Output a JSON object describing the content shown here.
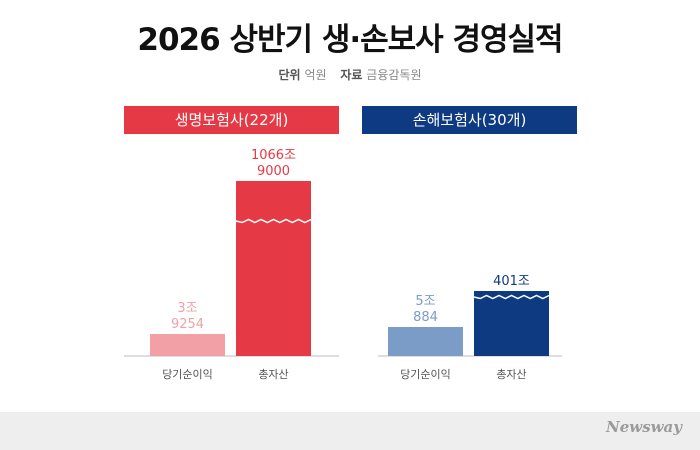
{
  "title": "2026 상반기 생·손보사 경영실적",
  "unit_line": {
    "unit_key": "단위",
    "unit_value": "억원",
    "source_key": "자료",
    "source_value": "금융감독원"
  },
  "brand": "Newsway",
  "colors": {
    "life_accent": "#e63946",
    "life_light": "#f2a0a6",
    "nonlife_accent": "#0d3a80",
    "nonlife_light": "#7a9cc7"
  },
  "chart_data": [
    {
      "type": "bar",
      "title": "생명보험사(22개)",
      "categories": [
        "당기순이익",
        "총자산"
      ],
      "values": [
        39254,
        10669000
      ],
      "value_labels": [
        [
          "3조",
          "9254"
        ],
        [
          "1066조",
          "9000"
        ]
      ],
      "axis_break": true
    },
    {
      "type": "bar",
      "title": "손해보험사(30개)",
      "categories": [
        "당기순이익",
        "총자산"
      ],
      "values": [
        50884,
        4010000
      ],
      "value_labels": [
        [
          "5조",
          "884"
        ],
        [
          "401조"
        ]
      ],
      "axis_break": true
    }
  ]
}
